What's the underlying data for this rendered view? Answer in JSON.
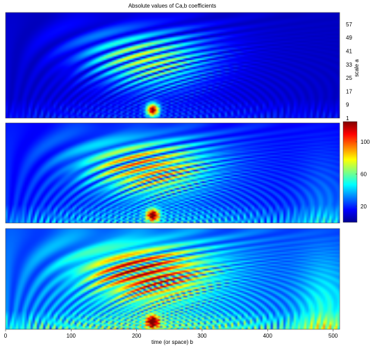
{
  "chart_data": {
    "type": "heatmap",
    "title": "Absolute values of Ca,b coefficients",
    "xlabel": "time (or space) b",
    "ylabel": "scale a",
    "xlim": [
      0,
      510
    ],
    "x_ticks": [
      "0",
      "100",
      "200",
      "300",
      "400",
      "500"
    ],
    "x_tick_values": [
      0,
      100,
      200,
      300,
      400,
      500
    ],
    "y_ticks": [
      "57",
      "49",
      "41",
      "33",
      "25",
      "17",
      "9",
      "1"
    ],
    "y_tick_values": [
      57,
      49,
      41,
      33,
      25,
      17,
      9,
      1
    ],
    "ylim": [
      1,
      64
    ],
    "panels": 3,
    "colorbar": {
      "ticks": [
        "100",
        "60",
        "20"
      ],
      "tick_values": [
        100,
        60,
        20
      ],
      "range": [
        0,
        125
      ],
      "colormap": "jet"
    }
  }
}
